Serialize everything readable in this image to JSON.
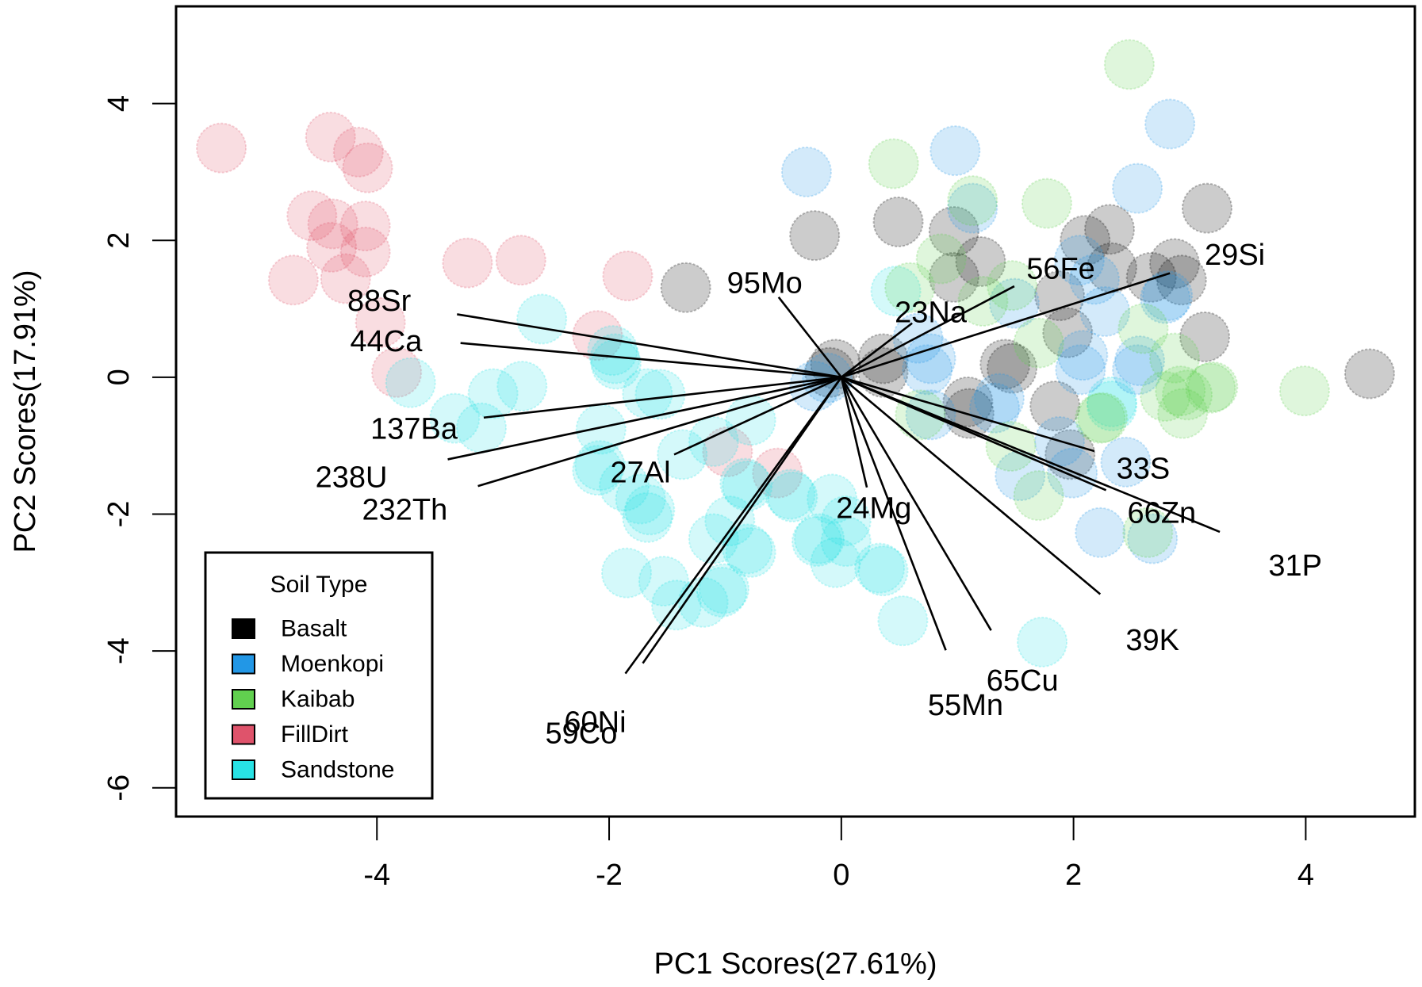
{
  "chart_data": {
    "type": "scatter",
    "subtype": "PCA biplot",
    "title": "",
    "xlabel": "PC1 Scores(27.61%)",
    "ylabel": "PC2 Scores(17.91%)",
    "xlim": [
      -5.73,
      4.94
    ],
    "ylim": [
      -6.42,
      5.42
    ],
    "x_ticks": [
      -4,
      -2,
      0,
      2,
      4
    ],
    "y_ticks": [
      -6,
      -4,
      -2,
      0,
      2,
      4
    ],
    "x_tick_labels": [
      "-4",
      "-2",
      "0",
      "2",
      "4"
    ],
    "y_tick_labels": [
      "-6",
      "-4",
      "-2",
      "0",
      "2",
      "4"
    ],
    "grid": false,
    "legend": {
      "title": "Soil Type",
      "placement": "bottom-left",
      "entries": [
        {
          "name": "Basalt",
          "color": "#000000"
        },
        {
          "name": "Moenkopi",
          "color": "#2297E6"
        },
        {
          "name": "Kaibab",
          "color": "#61D04F"
        },
        {
          "name": "FillDirt",
          "color": "#DF536B"
        },
        {
          "name": "Sandstone",
          "color": "#28E2E5"
        }
      ]
    },
    "point_fill_opacity": 0.2,
    "series": [
      {
        "name": "FillDirt",
        "color": "#DF536B",
        "points": [
          [
            -5.34,
            3.35
          ],
          [
            -4.4,
            3.51
          ],
          [
            -4.16,
            3.29
          ],
          [
            -4.08,
            3.06
          ],
          [
            -4.56,
            2.36
          ],
          [
            -4.38,
            2.24
          ],
          [
            -4.1,
            2.21
          ],
          [
            -4.39,
            1.9
          ],
          [
            -4.1,
            1.83
          ],
          [
            -4.72,
            1.42
          ],
          [
            -4.27,
            1.44
          ],
          [
            -3.22,
            1.67
          ],
          [
            -2.76,
            1.71
          ],
          [
            -1.84,
            1.48
          ],
          [
            -3.97,
            0.8
          ],
          [
            -3.83,
            0.07
          ],
          [
            -2.1,
            0.61
          ],
          [
            -0.98,
            -1.09
          ],
          [
            -0.55,
            -1.4
          ]
        ]
      },
      {
        "name": "Sandstone",
        "color": "#28E2E5",
        "points": [
          [
            -2.58,
            0.85
          ],
          [
            -3.71,
            -0.08
          ],
          [
            -3.0,
            -0.24
          ],
          [
            -2.75,
            -0.13
          ],
          [
            -3.33,
            -0.6
          ],
          [
            -3.1,
            -0.74
          ],
          [
            -1.97,
            0.39
          ],
          [
            -1.95,
            0.27
          ],
          [
            -1.56,
            -0.25
          ],
          [
            -1.67,
            -0.24
          ],
          [
            -2.07,
            -0.76
          ],
          [
            -2.08,
            -1.29
          ],
          [
            -2.1,
            -1.36
          ],
          [
            -1.37,
            -1.13
          ],
          [
            -1.1,
            -0.94
          ],
          [
            -0.78,
            -0.63
          ],
          [
            -1.87,
            -1.59
          ],
          [
            -1.73,
            -1.78
          ],
          [
            -1.65,
            -1.94
          ],
          [
            -1.67,
            -2.05
          ],
          [
            -0.83,
            -1.55
          ],
          [
            -0.81,
            -1.59
          ],
          [
            -0.44,
            -1.71
          ],
          [
            -0.96,
            -2.1
          ],
          [
            -1.1,
            -2.36
          ],
          [
            -0.81,
            -2.51
          ],
          [
            -1.85,
            -2.86
          ],
          [
            -1.53,
            -2.98
          ],
          [
            -1.42,
            -3.33
          ],
          [
            -1.19,
            -3.29
          ],
          [
            -1.01,
            -3.09
          ],
          [
            -1.03,
            -3.14
          ],
          [
            -0.08,
            -1.78
          ],
          [
            -0.42,
            -1.75
          ],
          [
            -0.19,
            -2.36
          ],
          [
            0.04,
            -2.1
          ],
          [
            -0.21,
            -2.4
          ],
          [
            0.04,
            -2.4
          ],
          [
            -0.05,
            -2.71
          ],
          [
            0.33,
            -2.79
          ],
          [
            0.36,
            -2.83
          ],
          [
            0.53,
            -3.56
          ],
          [
            1.73,
            -3.87
          ],
          [
            -0.78,
            -2.56
          ],
          [
            0.47,
            1.26
          ],
          [
            2.33,
            -0.36
          ],
          [
            2.33,
            -0.42
          ],
          [
            -1.94,
            0.19
          ]
        ]
      },
      {
        "name": "Basalt",
        "color": "#000000",
        "points": [
          [
            -1.34,
            1.31
          ],
          [
            -0.23,
            2.07
          ],
          [
            0.49,
            2.27
          ],
          [
            0.97,
            2.13
          ],
          [
            1.2,
            1.69
          ],
          [
            0.97,
            1.46
          ],
          [
            2.1,
            2.0
          ],
          [
            2.31,
            2.16
          ],
          [
            3.15,
            2.47
          ],
          [
            2.33,
            1.6
          ],
          [
            2.67,
            1.46
          ],
          [
            2.87,
            1.66
          ],
          [
            2.93,
            1.42
          ],
          [
            1.88,
            1.19
          ],
          [
            1.95,
            0.65
          ],
          [
            1.47,
            0.13
          ],
          [
            3.13,
            0.59
          ],
          [
            4.55,
            0.05
          ],
          [
            0.36,
            0.27
          ],
          [
            0.36,
            0.07
          ],
          [
            -0.05,
            0.19
          ],
          [
            -0.1,
            0.07
          ],
          [
            1.09,
            -0.36
          ],
          [
            1.1,
            -0.53
          ],
          [
            1.84,
            -0.42
          ],
          [
            1.97,
            -1.13
          ],
          [
            1.41,
            0.19
          ]
        ]
      },
      {
        "name": "Moenkopi",
        "color": "#2297E6",
        "points": [
          [
            -0.3,
            3.0
          ],
          [
            0.98,
            3.31
          ],
          [
            2.83,
            3.7
          ],
          [
            2.55,
            2.76
          ],
          [
            1.13,
            2.47
          ],
          [
            2.05,
            1.71
          ],
          [
            2.18,
            1.43
          ],
          [
            2.81,
            1.19
          ],
          [
            2.79,
            1.15
          ],
          [
            2.27,
            0.96
          ],
          [
            1.49,
            1.08
          ],
          [
            2.08,
            0.32
          ],
          [
            2.57,
            0.24
          ],
          [
            0.66,
            0.57
          ],
          [
            0.77,
            0.27
          ],
          [
            0.74,
            0.11
          ],
          [
            2.06,
            0.11
          ],
          [
            2.55,
            0.11
          ],
          [
            -0.12,
            -0.01
          ],
          [
            -0.23,
            -0.13
          ],
          [
            0.77,
            -0.55
          ],
          [
            1.32,
            -0.45
          ],
          [
            1.36,
            -0.31
          ],
          [
            1.88,
            -0.94
          ],
          [
            1.54,
            -1.44
          ],
          [
            1.99,
            -1.4
          ],
          [
            2.45,
            -1.24
          ],
          [
            2.23,
            -2.27
          ],
          [
            2.68,
            -2.36
          ]
        ]
      },
      {
        "name": "Kaibab",
        "color": "#61D04F",
        "points": [
          [
            2.48,
            4.57
          ],
          [
            0.45,
            3.12
          ],
          [
            1.13,
            2.58
          ],
          [
            1.77,
            2.54
          ],
          [
            0.86,
            1.73
          ],
          [
            0.59,
            1.31
          ],
          [
            1.47,
            1.34
          ],
          [
            1.22,
            1.11
          ],
          [
            1.7,
            0.5
          ],
          [
            2.6,
            0.71
          ],
          [
            2.87,
            0.28
          ],
          [
            3.2,
            -0.14
          ],
          [
            3.99,
            -0.2
          ],
          [
            2.79,
            -0.28
          ],
          [
            2.98,
            -0.26
          ],
          [
            2.94,
            -0.53
          ],
          [
            3.18,
            -0.16
          ],
          [
            2.92,
            -0.2
          ],
          [
            0.68,
            -0.55
          ],
          [
            2.25,
            -0.59
          ],
          [
            2.23,
            -0.6
          ],
          [
            1.46,
            -1.01
          ],
          [
            1.7,
            -1.73
          ],
          [
            2.64,
            -2.27
          ]
        ]
      }
    ],
    "loadings": [
      {
        "name": "88Sr",
        "end": [
          -3.31,
          0.92
        ],
        "label_at": [
          -3.98,
          1.11
        ]
      },
      {
        "name": "44Ca",
        "end": [
          -3.28,
          0.5
        ],
        "label_at": [
          -3.92,
          0.52
        ]
      },
      {
        "name": "137Ba",
        "end": [
          -3.08,
          -0.59
        ],
        "label_at": [
          -3.68,
          -0.76
        ]
      },
      {
        "name": "238U",
        "end": [
          -3.39,
          -1.2
        ],
        "label_at": [
          -4.22,
          -1.47
        ]
      },
      {
        "name": "232Th",
        "end": [
          -3.13,
          -1.59
        ],
        "label_at": [
          -3.76,
          -1.94
        ]
      },
      {
        "name": "27Al",
        "end": [
          -1.44,
          -1.13
        ],
        "label_at": [
          -1.73,
          -1.4
        ]
      },
      {
        "name": "60Ni",
        "end": [
          -1.86,
          -4.33
        ],
        "label_at": [
          -2.12,
          -5.05
        ]
      },
      {
        "name": "59Co",
        "end": [
          -1.71,
          -4.18
        ],
        "label_at": [
          -2.24,
          -5.21
        ]
      },
      {
        "name": "95Mo",
        "end": [
          -0.54,
          1.17
        ],
        "label_at": [
          -0.66,
          1.37
        ]
      },
      {
        "name": "23Na",
        "end": [
          0.61,
          0.79
        ],
        "label_at": [
          0.77,
          0.94
        ]
      },
      {
        "name": "56Fe",
        "end": [
          1.49,
          1.33
        ],
        "label_at": [
          1.89,
          1.58
        ]
      },
      {
        "name": "29Si",
        "end": [
          2.83,
          1.52
        ],
        "label_at": [
          3.39,
          1.78
        ]
      },
      {
        "name": "33S",
        "end": [
          2.18,
          -1.08
        ],
        "label_at": [
          2.6,
          -1.34
        ]
      },
      {
        "name": "66Zn",
        "end": [
          2.28,
          -1.65
        ],
        "label_at": [
          2.76,
          -1.99
        ]
      },
      {
        "name": "31P",
        "end": [
          3.26,
          -2.26
        ],
        "label_at": [
          3.91,
          -2.76
        ]
      },
      {
        "name": "39K",
        "end": [
          2.23,
          -3.17
        ],
        "label_at": [
          2.68,
          -3.85
        ]
      },
      {
        "name": "65Cu",
        "end": [
          1.29,
          -3.7
        ],
        "label_at": [
          1.56,
          -4.44
        ]
      },
      {
        "name": "55Mn",
        "end": [
          0.9,
          -3.99
        ],
        "label_at": [
          1.07,
          -4.8
        ]
      },
      {
        "name": "24Mg",
        "end": [
          0.22,
          -1.61
        ],
        "label_at": [
          0.28,
          -1.92
        ]
      }
    ]
  }
}
